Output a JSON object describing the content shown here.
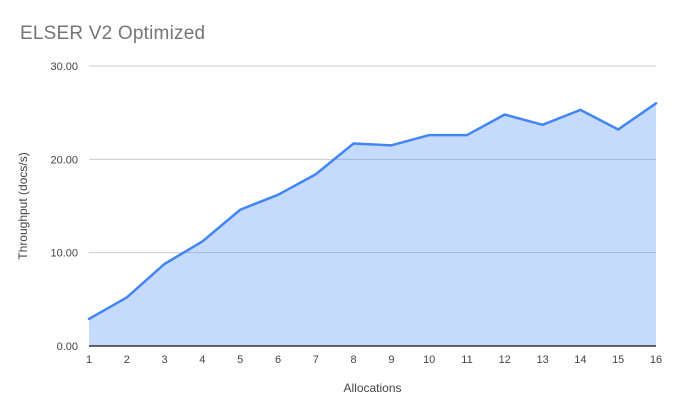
{
  "page": {
    "background": "#ffffff"
  },
  "colors": {
    "line": "#4285F4",
    "fill": "rgba(66,133,244,0.30)",
    "grid": "#CCCCCC",
    "axis": "#333333",
    "title_text": "#757575",
    "tick_text": "#444444"
  },
  "chart_data": {
    "type": "area",
    "title": "ELSER V2 Optimized",
    "xlabel": "Allocations",
    "ylabel": "Throughput (docs/s)",
    "categories": [
      "1",
      "2",
      "3",
      "4",
      "5",
      "6",
      "7",
      "8",
      "9",
      "10",
      "11",
      "12",
      "13",
      "14",
      "15",
      "16"
    ],
    "values": [
      2.9,
      5.2,
      8.8,
      11.2,
      14.6,
      16.2,
      18.4,
      21.7,
      21.5,
      22.6,
      22.6,
      24.8,
      23.7,
      25.3,
      23.2,
      26.0
    ],
    "ylim": [
      0,
      30
    ],
    "yticks": [
      0,
      10,
      20,
      30
    ],
    "ytick_labels": [
      "0.00",
      "10.00",
      "20.00",
      "30.00"
    ],
    "grid": "horizontal",
    "legend": "none"
  }
}
